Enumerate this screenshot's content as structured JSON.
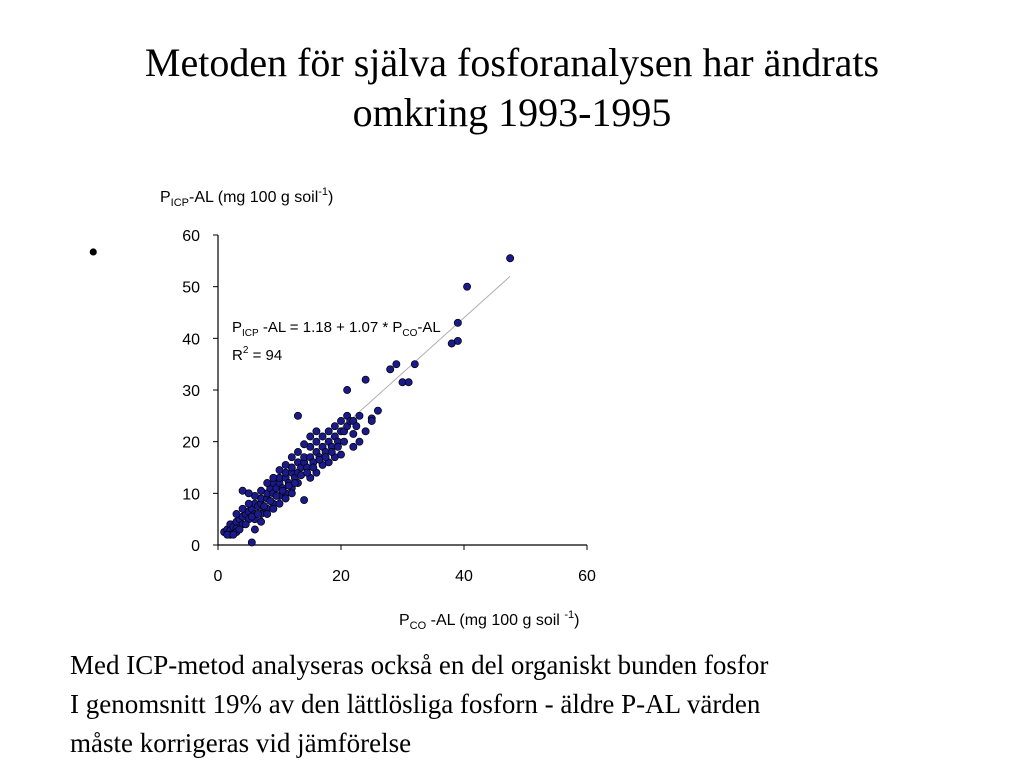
{
  "slide": {
    "title_line1": "Metoden för själva fosforanalysen har ändrats",
    "title_line2": "omkring 1993-1995",
    "bullet": "•",
    "caption_lines": [
      "Med ICP-metod analyseras också en del organiskt bunden fosfor",
      "I genomsnitt 19% av den lättlösliga fosforn  - äldre P-AL värden",
      "måste korrigeras vid jämförelse"
    ]
  },
  "chart_data": {
    "type": "scatter",
    "title": "",
    "ylabel": {
      "main": "P",
      "sub": "ICP",
      "rest": "-AL (mg 100 g soil",
      "sup": "-1",
      "close": ")"
    },
    "xlabel": {
      "main": "P",
      "sub": "CO",
      "rest": " -AL (mg 100 g soil ",
      "sup": "-1",
      "close": ")"
    },
    "xlim": [
      0,
      60
    ],
    "ylim": [
      0,
      60
    ],
    "xticks": [
      0,
      20,
      40,
      60
    ],
    "yticks": [
      0,
      10,
      20,
      30,
      40,
      50,
      60
    ],
    "grid": false,
    "point_color": "#1a1a8c",
    "line_color": "#b0b0b0",
    "regression": {
      "intercept": 1.18,
      "slope": 1.07,
      "x_range": [
        1,
        47.5
      ]
    },
    "equation": {
      "p1": "P",
      "sub1": "ICP",
      "mid": " -AL = 1.18 + 1.07 * P",
      "sub2": "CO",
      "end": "-AL",
      "r2_main": "R",
      "r2_sup": "2",
      "r2_end": " = 94"
    },
    "series": [
      {
        "points": [
          [
            1,
            2.5
          ],
          [
            1.5,
            3
          ],
          [
            2,
            2.8
          ],
          [
            2,
            4
          ],
          [
            2.5,
            3.5
          ],
          [
            3,
            4.5
          ],
          [
            3,
            3.2
          ],
          [
            3.5,
            5
          ],
          [
            4,
            4
          ],
          [
            4,
            5.5
          ],
          [
            4.5,
            6
          ],
          [
            5,
            5
          ],
          [
            5,
            6.5
          ],
          [
            5.5,
            7
          ],
          [
            6,
            6
          ],
          [
            6,
            8
          ],
          [
            6.5,
            7.5
          ],
          [
            7,
            8
          ],
          [
            7,
            9
          ],
          [
            7.5,
            7
          ],
          [
            8,
            9
          ],
          [
            8,
            10
          ],
          [
            8.5,
            11
          ],
          [
            9,
            10
          ],
          [
            9,
            12
          ],
          [
            9.5,
            11
          ],
          [
            10,
            12
          ],
          [
            10,
            13
          ],
          [
            10.5,
            11
          ],
          [
            11,
            13
          ],
          [
            11,
            14
          ],
          [
            11.5,
            12
          ],
          [
            12,
            14
          ],
          [
            12,
            15
          ],
          [
            12.5,
            13
          ],
          [
            13,
            16
          ],
          [
            13,
            14
          ],
          [
            13.5,
            15
          ],
          [
            14,
            16
          ],
          [
            14,
            17
          ],
          [
            14.5,
            15
          ],
          [
            15,
            17
          ],
          [
            15,
            19
          ],
          [
            15.5,
            16
          ],
          [
            16,
            18
          ],
          [
            16,
            20
          ],
          [
            16.5,
            17
          ],
          [
            17,
            19
          ],
          [
            17,
            21
          ],
          [
            17.5,
            18
          ],
          [
            18,
            20
          ],
          [
            18,
            22
          ],
          [
            18.5,
            19
          ],
          [
            19,
            21
          ],
          [
            19,
            23
          ],
          [
            19.5,
            20
          ],
          [
            20,
            22
          ],
          [
            20,
            24
          ],
          [
            20.5,
            22
          ],
          [
            21,
            23
          ],
          [
            21,
            25
          ],
          [
            21.5,
            24
          ],
          [
            22,
            24
          ],
          [
            22.5,
            23
          ],
          [
            23,
            25
          ],
          [
            3,
            6
          ],
          [
            4,
            7
          ],
          [
            5,
            8
          ],
          [
            6,
            9.5
          ],
          [
            7,
            10.5
          ],
          [
            8,
            12
          ],
          [
            9,
            13
          ],
          [
            10,
            14.5
          ],
          [
            11,
            15.5
          ],
          [
            12,
            17
          ],
          [
            13,
            18
          ],
          [
            14,
            19.5
          ],
          [
            15,
            21
          ],
          [
            16,
            22
          ],
          [
            4,
            10.5
          ],
          [
            5,
            10
          ],
          [
            5.5,
            0.5
          ],
          [
            6,
            3
          ],
          [
            7,
            6
          ],
          [
            8,
            7
          ],
          [
            9,
            8
          ],
          [
            10,
            9.5
          ],
          [
            11,
            10
          ],
          [
            12,
            11
          ],
          [
            13,
            12
          ],
          [
            14,
            8.7
          ],
          [
            15,
            13
          ],
          [
            16,
            14
          ],
          [
            17,
            15.5
          ],
          [
            18,
            16
          ],
          [
            19,
            17
          ],
          [
            20,
            17.5
          ],
          [
            22,
            19
          ],
          [
            23,
            20
          ],
          [
            21,
            30
          ],
          [
            24,
            32
          ],
          [
            26,
            26
          ],
          [
            28,
            34
          ],
          [
            29,
            35
          ],
          [
            30,
            31.5
          ],
          [
            31,
            31.5
          ],
          [
            32,
            35
          ],
          [
            38,
            39
          ],
          [
            39,
            39.5
          ],
          [
            39,
            43
          ],
          [
            40.5,
            50
          ],
          [
            47.5,
            55.5
          ],
          [
            13,
            25
          ],
          [
            25,
            24.5
          ],
          [
            2,
            2
          ],
          [
            3,
            2.5
          ],
          [
            6,
            5
          ],
          [
            7,
            4.5
          ],
          [
            8,
            6
          ],
          [
            9,
            7
          ],
          [
            10,
            8
          ],
          [
            11,
            9
          ],
          [
            12,
            10
          ],
          [
            1.5,
            2
          ],
          [
            2.5,
            2
          ],
          [
            3.5,
            3
          ],
          [
            4.5,
            4
          ],
          [
            5.5,
            5.5
          ],
          [
            6.5,
            6
          ],
          [
            7.5,
            7.5
          ],
          [
            8.5,
            8.5
          ],
          [
            9.5,
            9.5
          ],
          [
            10.5,
            10.5
          ],
          [
            11.5,
            11.5
          ],
          [
            12.5,
            12
          ],
          [
            13.5,
            13.5
          ],
          [
            14.5,
            14
          ],
          [
            15.5,
            15
          ],
          [
            16.5,
            16.5
          ],
          [
            17.5,
            17
          ],
          [
            18.5,
            18
          ],
          [
            19.5,
            19
          ],
          [
            20.5,
            20
          ],
          [
            22,
            21.5
          ],
          [
            24,
            22
          ],
          [
            25,
            24
          ]
        ]
      }
    ]
  }
}
